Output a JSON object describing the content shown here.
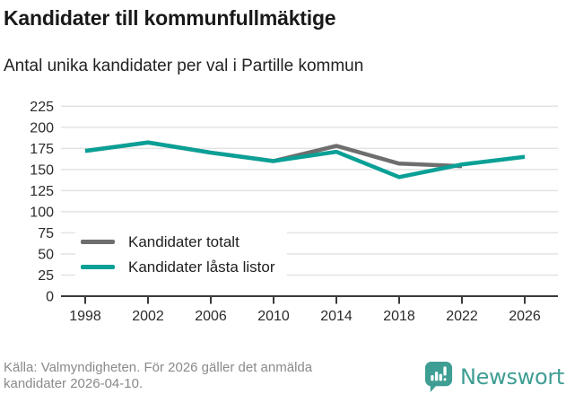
{
  "header": {
    "title": "Kandidater till kommunfullmäktige",
    "subtitle": "Antal unika kandidater per val i Partille kommun"
  },
  "chart_data": {
    "type": "line",
    "title": "Kandidater till kommunfullmäktige",
    "subtitle": "Antal unika kandidater per val i Partille kommun",
    "categories": [
      "1998",
      "2002",
      "2006",
      "2010",
      "2014",
      "2018",
      "2022",
      "2026"
    ],
    "series": [
      {
        "name": "Kandidater totalt",
        "color": "#6e6e6e",
        "values": [
          172,
          182,
          170,
          160,
          178,
          157,
          154,
          null
        ]
      },
      {
        "name": "Kandidater låsta listor",
        "color": "#0aa096",
        "values": [
          172,
          182,
          170,
          160,
          171,
          141,
          156,
          165
        ]
      }
    ],
    "ylim": [
      0,
      225
    ],
    "yticks": [
      0,
      25,
      50,
      75,
      100,
      125,
      150,
      175,
      200,
      225
    ],
    "grid": true,
    "legend_position": "inside bottom-left",
    "colors": {
      "gridline": "#e3e3e3",
      "axis": "#3a3a3a",
      "tick_label": "#2b2b2b"
    }
  },
  "footer": {
    "source": "Källa: Valmyndigheten. För 2026 gäller det anmälda kandidater 2026-04-10."
  },
  "logo": {
    "text": "Newsworthy",
    "color": "#3f9e94"
  }
}
